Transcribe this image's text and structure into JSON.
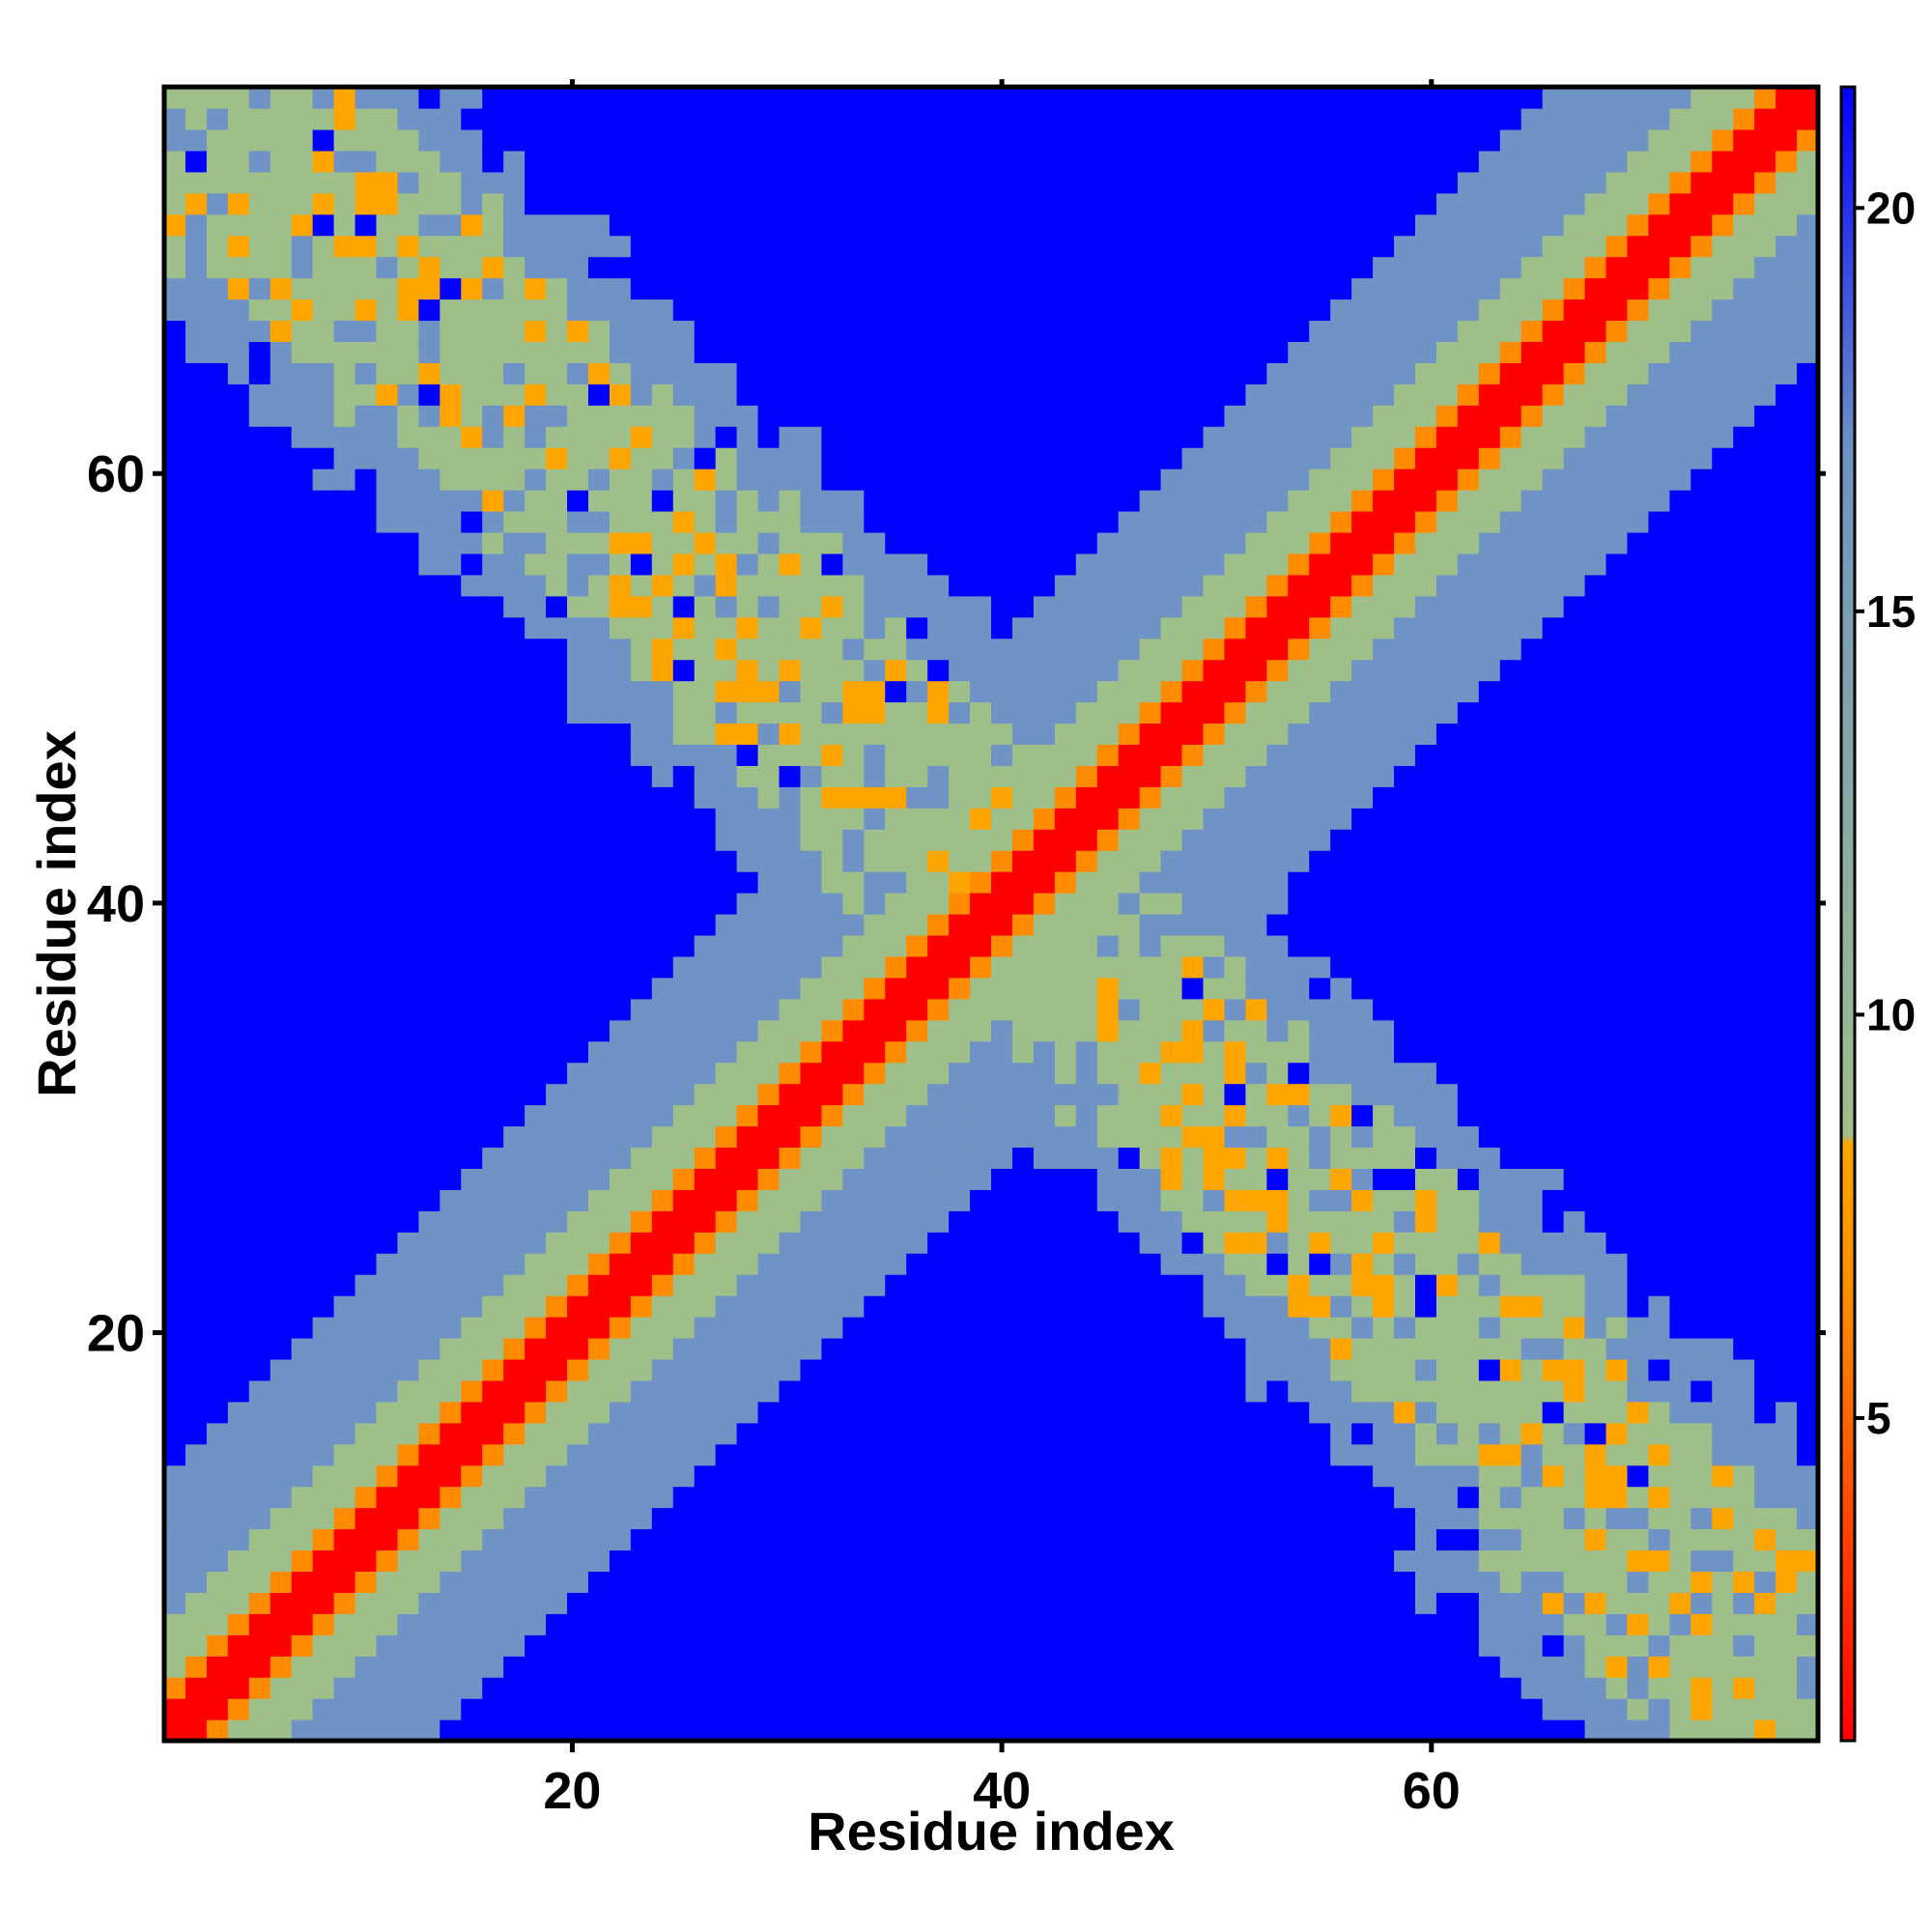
{
  "chart_data": {
    "type": "heatmap",
    "title": "",
    "xlabel": "Residue index",
    "ylabel": "Residue index",
    "n_residues": 78,
    "xlim": [
      1,
      78
    ],
    "ylim": [
      1,
      78
    ],
    "x_ticks": [
      20,
      40,
      60
    ],
    "y_ticks": [
      20,
      40,
      60
    ],
    "colorbar": {
      "ticks": [
        5,
        10,
        15,
        20
      ],
      "range": [
        1,
        21.5
      ],
      "colors": {
        "contact": "#ff0000",
        "near": "#ff8c00",
        "near_alt": "#ffa500",
        "mid": "#9fbf8a",
        "far": "#6f93c4",
        "none": "#0000ff"
      },
      "stops": [
        {
          "value": 1,
          "color": "#ff0000"
        },
        {
          "value": 6.5,
          "color": "#ff8c00"
        },
        {
          "value": 8.4,
          "color": "#ffa500"
        },
        {
          "value": 8.5,
          "color": "#9fbf8a"
        },
        {
          "value": 17,
          "color": "#6f93c4"
        },
        {
          "value": 21.5,
          "color": "#0000ff"
        }
      ]
    },
    "structure": {
      "description_values": "distance map between residue pairs; diagonal band of close distances and an anti-diagonal band of intermediate distances",
      "diagonal_band_width": 12,
      "antidiagonal_band_width": 12,
      "cutoff": 21.5
    }
  }
}
